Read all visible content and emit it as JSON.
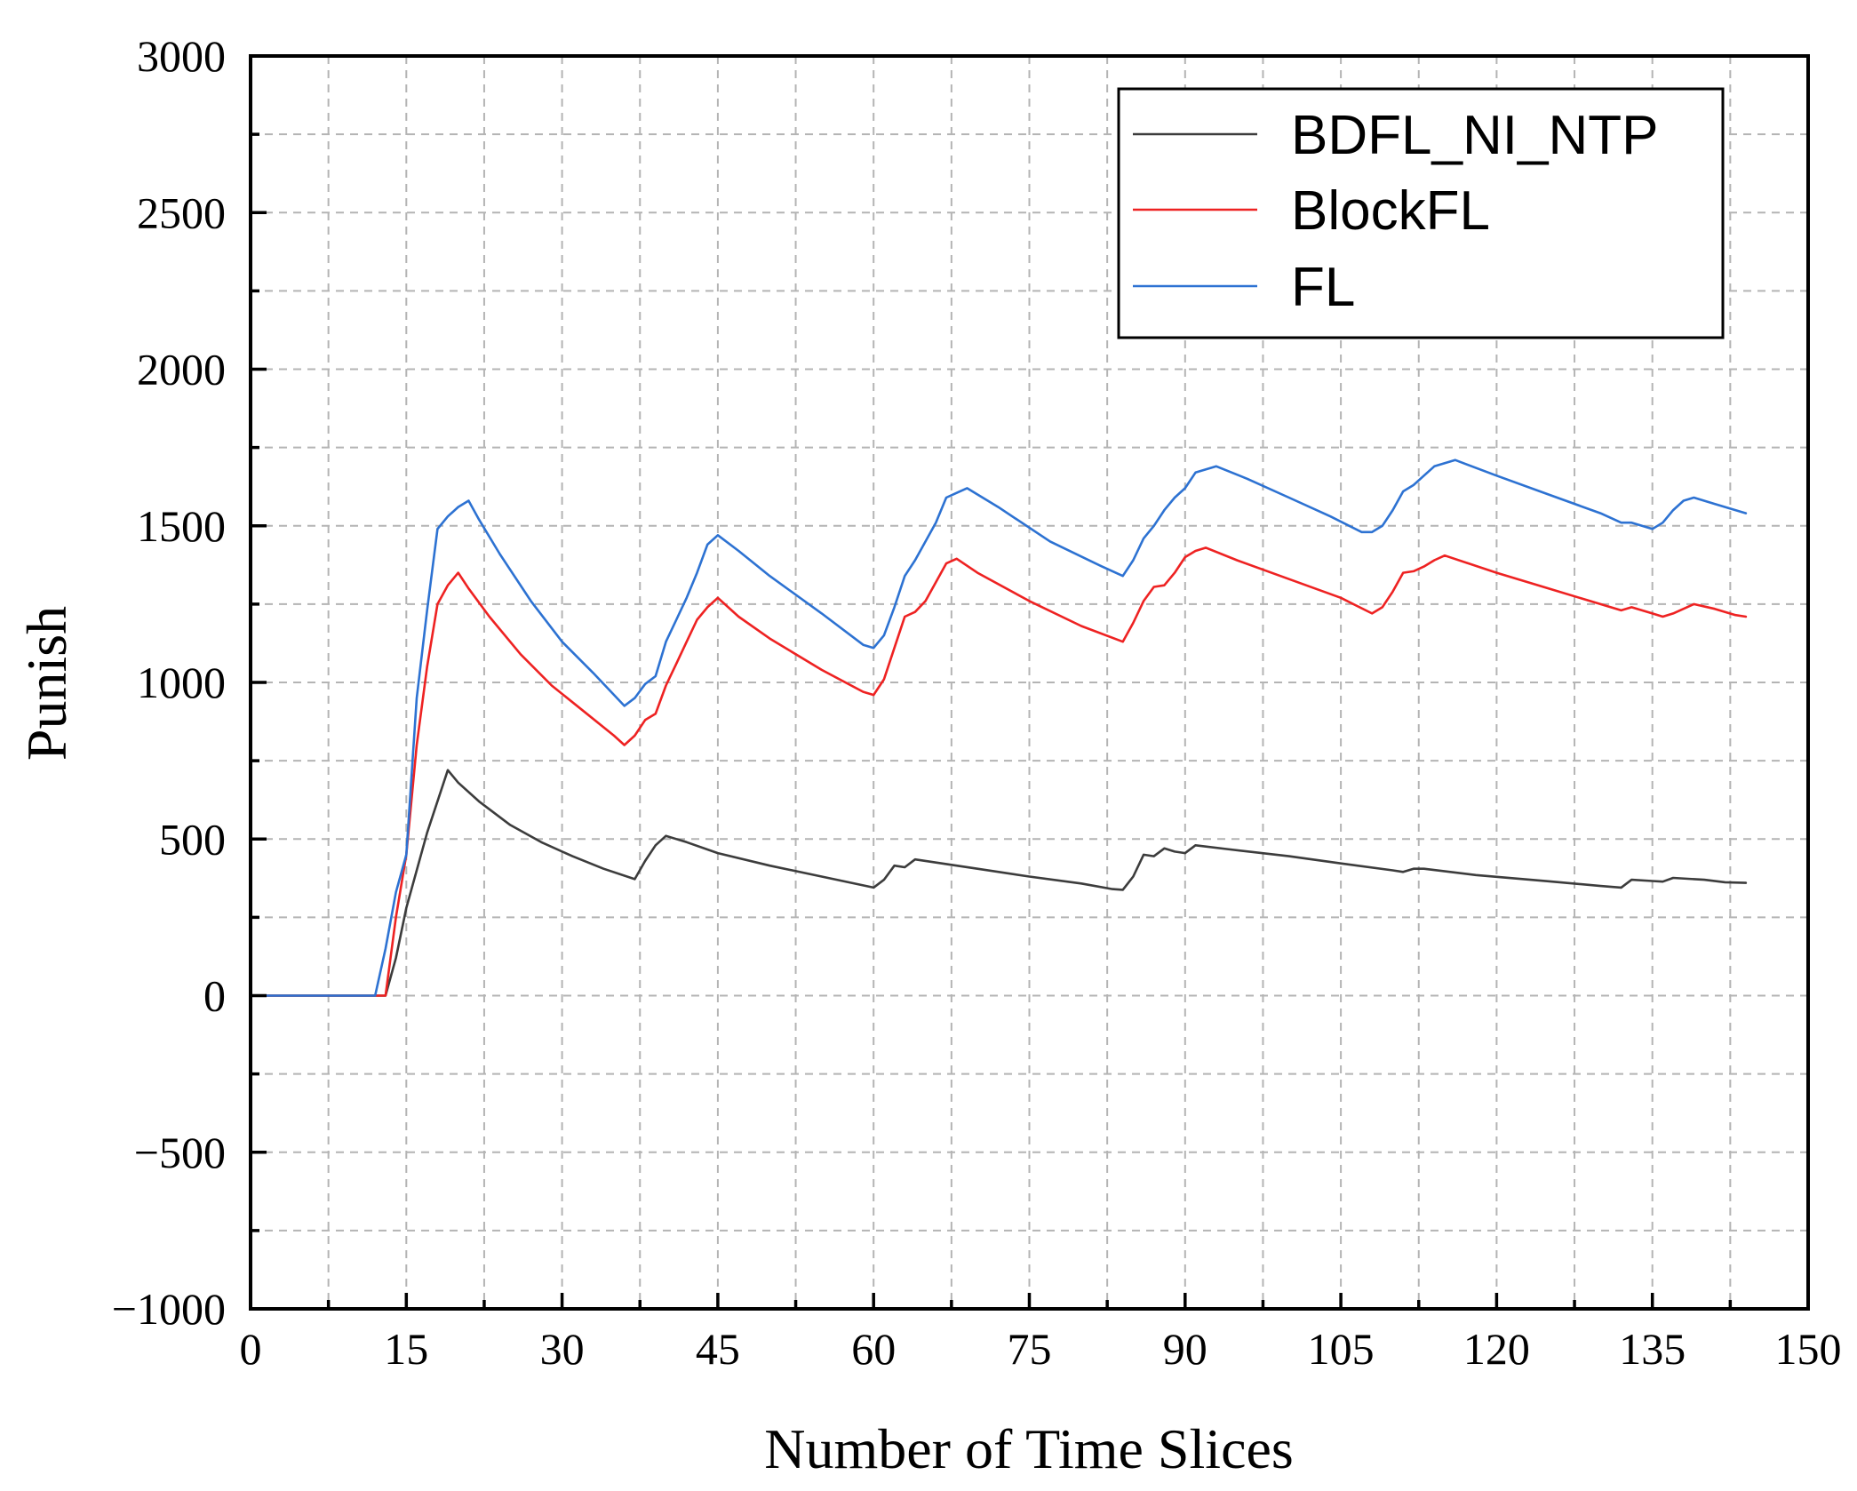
{
  "chart_data": {
    "type": "line",
    "title": "",
    "xlabel": "Number of Time Slices",
    "ylabel": "Punish",
    "xlim": [
      0,
      150
    ],
    "ylim": [
      -1000,
      3000
    ],
    "xticks": [
      0,
      15,
      30,
      45,
      60,
      75,
      90,
      105,
      120,
      135,
      150
    ],
    "yticks": [
      -1000,
      -500,
      0,
      500,
      1000,
      1500,
      2000,
      2500,
      3000
    ],
    "xtick_labels": [
      "0",
      "15",
      "30",
      "45",
      "60",
      "75",
      "90",
      "105",
      "120",
      "135",
      "150"
    ],
    "ytick_labels": [
      "−1000",
      "−500",
      "0",
      "500",
      "1000",
      "1500",
      "2000",
      "2500",
      "3000"
    ],
    "grid": true,
    "legend_position": "top-right",
    "series": [
      {
        "name": "BDFL_NI_NTP",
        "color": "#3c3c3c",
        "points": [
          [
            0,
            0
          ],
          [
            13,
            0
          ],
          [
            14,
            120
          ],
          [
            15,
            280
          ],
          [
            17,
            520
          ],
          [
            19,
            720
          ],
          [
            20,
            680
          ],
          [
            22,
            620
          ],
          [
            25,
            545
          ],
          [
            28,
            490
          ],
          [
            31,
            445
          ],
          [
            34,
            405
          ],
          [
            37,
            372
          ],
          [
            38,
            430
          ],
          [
            39,
            480
          ],
          [
            40,
            510
          ],
          [
            42,
            490
          ],
          [
            45,
            455
          ],
          [
            50,
            415
          ],
          [
            55,
            380
          ],
          [
            60,
            345
          ],
          [
            61,
            370
          ],
          [
            62,
            415
          ],
          [
            63,
            410
          ],
          [
            64,
            435
          ],
          [
            66,
            425
          ],
          [
            70,
            405
          ],
          [
            75,
            380
          ],
          [
            80,
            358
          ],
          [
            83,
            340
          ],
          [
            84,
            338
          ],
          [
            85,
            380
          ],
          [
            86,
            450
          ],
          [
            87,
            445
          ],
          [
            88,
            470
          ],
          [
            89,
            460
          ],
          [
            90,
            455
          ],
          [
            91,
            480
          ],
          [
            94,
            468
          ],
          [
            100,
            445
          ],
          [
            105,
            422
          ],
          [
            110,
            400
          ],
          [
            111,
            395
          ],
          [
            112,
            405
          ],
          [
            113,
            405
          ],
          [
            118,
            385
          ],
          [
            125,
            365
          ],
          [
            130,
            350
          ],
          [
            132,
            345
          ],
          [
            133,
            370
          ],
          [
            135,
            366
          ],
          [
            136,
            364
          ],
          [
            137,
            376
          ],
          [
            140,
            370
          ],
          [
            142,
            362
          ],
          [
            144,
            360
          ]
        ]
      },
      {
        "name": "BlockFL",
        "color": "#ee2222",
        "points": [
          [
            0,
            0
          ],
          [
            12,
            0
          ],
          [
            13,
            0
          ],
          [
            14,
            250
          ],
          [
            15,
            450
          ],
          [
            16,
            800
          ],
          [
            17,
            1050
          ],
          [
            18,
            1250
          ],
          [
            19,
            1310
          ],
          [
            20,
            1350
          ],
          [
            21,
            1300
          ],
          [
            23,
            1210
          ],
          [
            26,
            1090
          ],
          [
            29,
            990
          ],
          [
            32,
            910
          ],
          [
            35,
            830
          ],
          [
            36,
            800
          ],
          [
            37,
            830
          ],
          [
            38,
            880
          ],
          [
            39,
            900
          ],
          [
            40,
            990
          ],
          [
            41,
            1060
          ],
          [
            42,
            1130
          ],
          [
            43,
            1200
          ],
          [
            44,
            1240
          ],
          [
            45,
            1270
          ],
          [
            47,
            1210
          ],
          [
            50,
            1140
          ],
          [
            55,
            1040
          ],
          [
            59,
            970
          ],
          [
            60,
            960
          ],
          [
            61,
            1010
          ],
          [
            62,
            1110
          ],
          [
            63,
            1210
          ],
          [
            64,
            1225
          ],
          [
            65,
            1260
          ],
          [
            66,
            1320
          ],
          [
            67,
            1380
          ],
          [
            68,
            1395
          ],
          [
            70,
            1350
          ],
          [
            75,
            1260
          ],
          [
            80,
            1180
          ],
          [
            84,
            1130
          ],
          [
            85,
            1190
          ],
          [
            86,
            1260
          ],
          [
            87,
            1305
          ],
          [
            88,
            1310
          ],
          [
            89,
            1350
          ],
          [
            90,
            1400
          ],
          [
            91,
            1420
          ],
          [
            92,
            1430
          ],
          [
            95,
            1390
          ],
          [
            100,
            1330
          ],
          [
            105,
            1270
          ],
          [
            108,
            1220
          ],
          [
            109,
            1240
          ],
          [
            110,
            1290
          ],
          [
            111,
            1350
          ],
          [
            112,
            1355
          ],
          [
            113,
            1370
          ],
          [
            114,
            1390
          ],
          [
            115,
            1405
          ],
          [
            120,
            1350
          ],
          [
            125,
            1300
          ],
          [
            130,
            1250
          ],
          [
            132,
            1230
          ],
          [
            133,
            1240
          ],
          [
            135,
            1220
          ],
          [
            136,
            1210
          ],
          [
            137,
            1220
          ],
          [
            139,
            1250
          ],
          [
            141,
            1235
          ],
          [
            143,
            1215
          ],
          [
            144,
            1210
          ]
        ]
      },
      {
        "name": "FL",
        "color": "#2d72d2",
        "points": [
          [
            0,
            0
          ],
          [
            12,
            0
          ],
          [
            13,
            150
          ],
          [
            14,
            330
          ],
          [
            15,
            450
          ],
          [
            16,
            950
          ],
          [
            17,
            1230
          ],
          [
            18,
            1490
          ],
          [
            19,
            1530
          ],
          [
            20,
            1560
          ],
          [
            21,
            1580
          ],
          [
            22,
            1520
          ],
          [
            24,
            1410
          ],
          [
            27,
            1260
          ],
          [
            30,
            1130
          ],
          [
            33,
            1030
          ],
          [
            36,
            925
          ],
          [
            37,
            950
          ],
          [
            38,
            995
          ],
          [
            39,
            1020
          ],
          [
            40,
            1130
          ],
          [
            41,
            1200
          ],
          [
            42,
            1270
          ],
          [
            43,
            1350
          ],
          [
            44,
            1440
          ],
          [
            45,
            1470
          ],
          [
            47,
            1420
          ],
          [
            50,
            1340
          ],
          [
            55,
            1220
          ],
          [
            59,
            1120
          ],
          [
            60,
            1110
          ],
          [
            61,
            1150
          ],
          [
            62,
            1240
          ],
          [
            63,
            1340
          ],
          [
            64,
            1390
          ],
          [
            65,
            1450
          ],
          [
            66,
            1510
          ],
          [
            67,
            1590
          ],
          [
            68,
            1605
          ],
          [
            69,
            1620
          ],
          [
            72,
            1560
          ],
          [
            77,
            1450
          ],
          [
            82,
            1370
          ],
          [
            84,
            1340
          ],
          [
            85,
            1390
          ],
          [
            86,
            1460
          ],
          [
            87,
            1500
          ],
          [
            88,
            1550
          ],
          [
            89,
            1590
          ],
          [
            90,
            1620
          ],
          [
            91,
            1670
          ],
          [
            92,
            1680
          ],
          [
            93,
            1690
          ],
          [
            96,
            1650
          ],
          [
            100,
            1590
          ],
          [
            104,
            1530
          ],
          [
            107,
            1480
          ],
          [
            108,
            1480
          ],
          [
            109,
            1500
          ],
          [
            110,
            1550
          ],
          [
            111,
            1610
          ],
          [
            112,
            1630
          ],
          [
            113,
            1660
          ],
          [
            114,
            1690
          ],
          [
            115,
            1700
          ],
          [
            116,
            1710
          ],
          [
            120,
            1660
          ],
          [
            125,
            1600
          ],
          [
            130,
            1540
          ],
          [
            132,
            1510
          ],
          [
            133,
            1510
          ],
          [
            135,
            1490
          ],
          [
            136,
            1510
          ],
          [
            137,
            1550
          ],
          [
            138,
            1580
          ],
          [
            139,
            1590
          ],
          [
            141,
            1570
          ],
          [
            143,
            1550
          ],
          [
            144,
            1540
          ]
        ]
      }
    ]
  }
}
